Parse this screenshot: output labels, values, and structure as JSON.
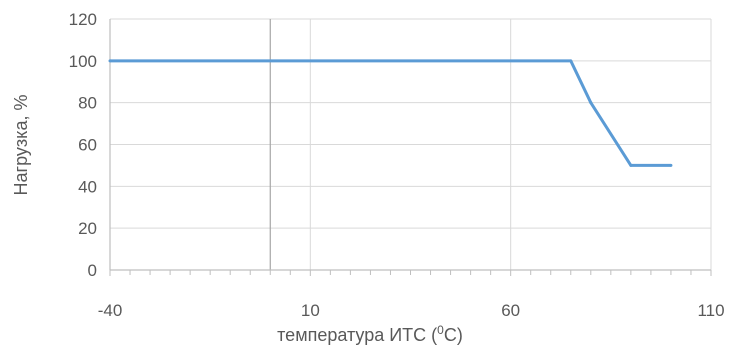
{
  "chart_data": {
    "type": "line",
    "title": "",
    "xlabel": "температура ИТС (",
    "xlabel_sup": "0",
    "xlabel_tail": "C)",
    "ylabel": "Нагрузка, %",
    "xlim": [
      -40,
      110
    ],
    "ylim": [
      0,
      120
    ],
    "x_major_ticks": [
      -40,
      10,
      60,
      110
    ],
    "x_tick_labels": [
      "-40",
      "10",
      "60",
      "110"
    ],
    "x_minor_step": 5,
    "y_ticks": [
      0,
      20,
      40,
      60,
      80,
      100,
      120
    ],
    "y_tick_labels": [
      "0",
      "20",
      "40",
      "60",
      "80",
      "100",
      "120"
    ],
    "grid": true,
    "reference_line_x": 0,
    "series": [
      {
        "color": "#5B9BD5",
        "x": [
          -40,
          75,
          80,
          90,
          100
        ],
        "y": [
          100,
          100,
          80,
          50,
          50
        ]
      }
    ],
    "colors": {
      "grid": "#d9d9d9",
      "axis": "#bfbfbf",
      "text": "#595959",
      "reference": "#a6a6a6"
    }
  }
}
